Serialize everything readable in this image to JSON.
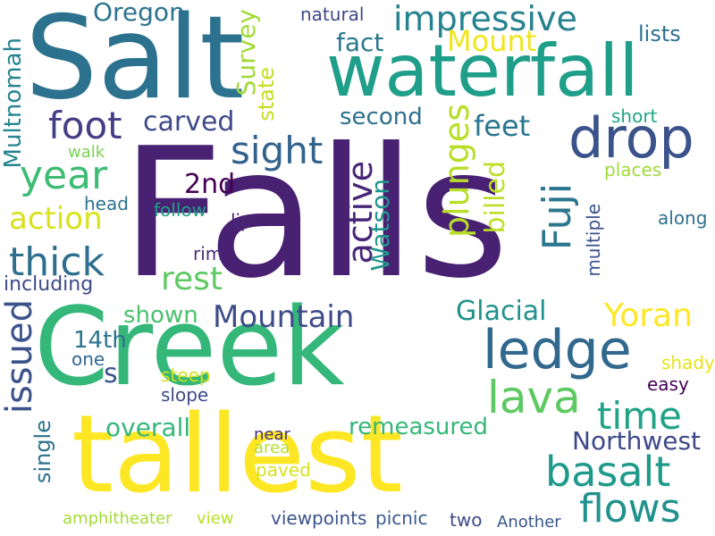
{
  "words": [
    {
      "id": "falls",
      "text": "Falls",
      "color": "#482173"
    },
    {
      "id": "salt",
      "text": "Salt",
      "color": "#2c728e"
    },
    {
      "id": "creek",
      "text": "Creek",
      "color": "#35b779"
    },
    {
      "id": "tallest",
      "text": "tallest",
      "color": "#fde725"
    },
    {
      "id": "waterfall",
      "text": "waterfall",
      "color": "#1f9e89"
    },
    {
      "id": "drop",
      "text": "drop",
      "color": "#3b528b"
    },
    {
      "id": "ledge",
      "text": "ledge",
      "color": "#31688e"
    },
    {
      "id": "impressive",
      "text": "impressive",
      "color": "#26828e"
    },
    {
      "id": "foot",
      "text": "foot",
      "color": "#433e85"
    },
    {
      "id": "carved",
      "text": "carved",
      "color": "#3e4a89"
    },
    {
      "id": "sight",
      "text": "sight",
      "color": "#33638d"
    },
    {
      "id": "year",
      "text": "year",
      "color": "#3dbc74"
    },
    {
      "id": "thick",
      "text": "thick",
      "color": "#2e6f8e"
    },
    {
      "id": "action",
      "text": "action",
      "color": "#d8e219"
    },
    {
      "id": "mount",
      "text": "Mount",
      "color": "#f1e51d"
    },
    {
      "id": "fact",
      "text": "fact",
      "color": "#2a788e"
    },
    {
      "id": "second",
      "text": "second",
      "color": "#2d708e"
    },
    {
      "id": "feet",
      "text": "feet",
      "color": "#2a768e"
    },
    {
      "id": "oregon",
      "text": "Oregon",
      "color": "#2c738e"
    },
    {
      "id": "natural",
      "text": "natural",
      "color": "#3f4889"
    },
    {
      "id": "lists",
      "text": "lists",
      "color": "#2c718e"
    },
    {
      "id": "survey",
      "text": "Survey",
      "color": "#a2da37"
    },
    {
      "id": "state",
      "text": "state",
      "color": "#c5df21"
    },
    {
      "id": "multnomah",
      "text": "Multnomah",
      "color": "#25838e"
    },
    {
      "id": "plunges",
      "text": "plunges",
      "color": "#b8de29"
    },
    {
      "id": "fuji",
      "text": "Fuji",
      "color": "#2a768e"
    },
    {
      "id": "billed",
      "text": "billed",
      "color": "#bddf26"
    },
    {
      "id": "active",
      "text": "active",
      "color": "#482677"
    },
    {
      "id": "watson",
      "text": "Watson",
      "color": "#1f968b"
    },
    {
      "id": "2nd",
      "text": "2nd",
      "color": "#440154"
    },
    {
      "id": "rest",
      "text": "rest",
      "color": "#5ec962"
    },
    {
      "id": "mountain",
      "text": "Mountain",
      "color": "#3e4c8a"
    },
    {
      "id": "shown",
      "text": "shown",
      "color": "#4ac16d"
    },
    {
      "id": "glacial",
      "text": "Glacial",
      "color": "#21918c"
    },
    {
      "id": "yoran",
      "text": "Yoran",
      "color": "#fde725"
    },
    {
      "id": "issued",
      "text": "issued",
      "color": "#3b528b"
    },
    {
      "id": "14th",
      "text": "14th",
      "color": "#2c728e"
    },
    {
      "id": "s",
      "text": "s",
      "color": "#3b528b"
    },
    {
      "id": "lava",
      "text": "lava",
      "color": "#5ec962"
    },
    {
      "id": "time",
      "text": "time",
      "color": "#20a386"
    },
    {
      "id": "basalt",
      "text": "basalt",
      "color": "#1f9a8a"
    },
    {
      "id": "flows",
      "text": "flows",
      "color": "#21918c"
    },
    {
      "id": "northwest",
      "text": "Northwest",
      "color": "#3e4989"
    },
    {
      "id": "remeasured",
      "text": "remeasured",
      "color": "#35b779"
    },
    {
      "id": "overall",
      "text": "overall",
      "color": "#35b779"
    },
    {
      "id": "including",
      "text": "including",
      "color": "#3e4a89"
    },
    {
      "id": "walk",
      "text": "walk",
      "color": "#7ad151"
    },
    {
      "id": "head",
      "text": "head",
      "color": "#2c728e"
    },
    {
      "id": "follow",
      "text": "follow",
      "color": "#1f9f88"
    },
    {
      "id": "lip",
      "text": "lip",
      "color": "#482677"
    },
    {
      "id": "rim",
      "text": "rim",
      "color": "#472d7b"
    },
    {
      "id": "short",
      "text": "short",
      "color": "#21a585"
    },
    {
      "id": "places",
      "text": "places",
      "color": "#a0da39"
    },
    {
      "id": "along",
      "text": "along",
      "color": "#2d718e"
    },
    {
      "id": "multiple",
      "text": "multiple",
      "color": "#3b528b"
    },
    {
      "id": "one",
      "text": "one",
      "color": "#31688e"
    },
    {
      "id": "steep",
      "text": "steep",
      "color": "#d0e11c"
    },
    {
      "id": "slope",
      "text": "slope",
      "color": "#3e4989"
    },
    {
      "id": "easy",
      "text": "easy",
      "color": "#440154"
    },
    {
      "id": "shady",
      "text": "shady",
      "color": "#e5e419"
    },
    {
      "id": "single",
      "text": "single",
      "color": "#2c728e"
    },
    {
      "id": "near",
      "text": "near",
      "color": "#472f7d"
    },
    {
      "id": "area",
      "text": "area",
      "color": "#b5de2b"
    },
    {
      "id": "paved",
      "text": "paved",
      "color": "#d8e219"
    },
    {
      "id": "amphitheater",
      "text": "amphitheater",
      "color": "#a5db36"
    },
    {
      "id": "view",
      "text": "view",
      "color": "#b8de29"
    },
    {
      "id": "viewpoints",
      "text": "viewpoints",
      "color": "#3b528b"
    },
    {
      "id": "picnic",
      "text": "picnic",
      "color": "#38598c"
    },
    {
      "id": "two",
      "text": "two",
      "color": "#3e4a89"
    },
    {
      "id": "another",
      "text": "Another",
      "color": "#39568c"
    }
  ]
}
